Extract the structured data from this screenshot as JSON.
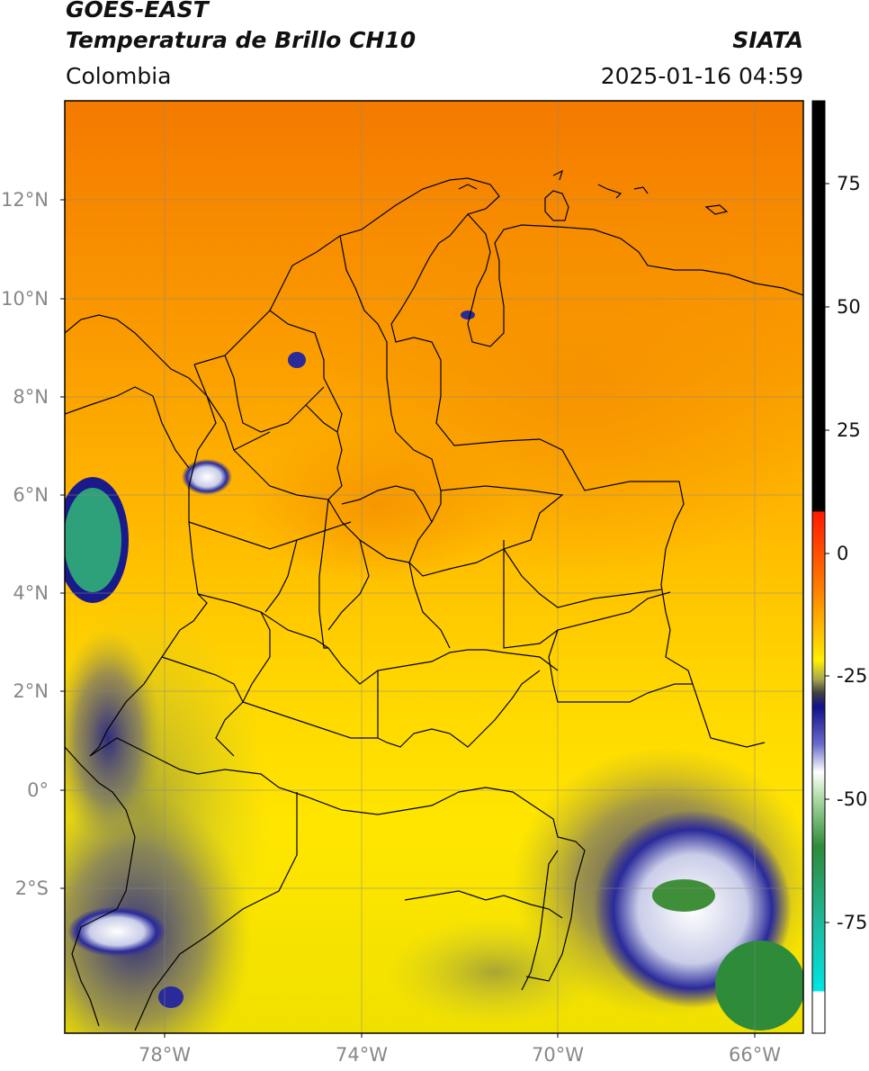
{
  "header": {
    "satellite": "GOES-EAST",
    "product": "Temperatura de Brillo CH10",
    "region": "Colombia",
    "agency": "SIATA",
    "timestamp": "2025-01-16 04:59"
  },
  "map": {
    "lat_ticks": [
      "12°N",
      "10°N",
      "8°N",
      "6°N",
      "4°N",
      "2°N",
      "0°",
      "2°S"
    ],
    "lon_ticks": [
      "78°W",
      "74°W",
      "70°W",
      "66°W"
    ],
    "gridlines": true
  },
  "colorbar": {
    "ticks": [
      "75",
      "50",
      "25",
      "0",
      "-25",
      "-50",
      "-75"
    ],
    "colors": {
      "warm": "#000000",
      "red": "#ff2200",
      "orange": "#ff8c00",
      "yellow": "#ffe100",
      "olive": "#9c9c40",
      "navy": "#0d0d80",
      "white": "#ffffff",
      "green": "#2e8b3a",
      "teal": "#19c4a0",
      "cyan": "#00e5e5"
    }
  }
}
